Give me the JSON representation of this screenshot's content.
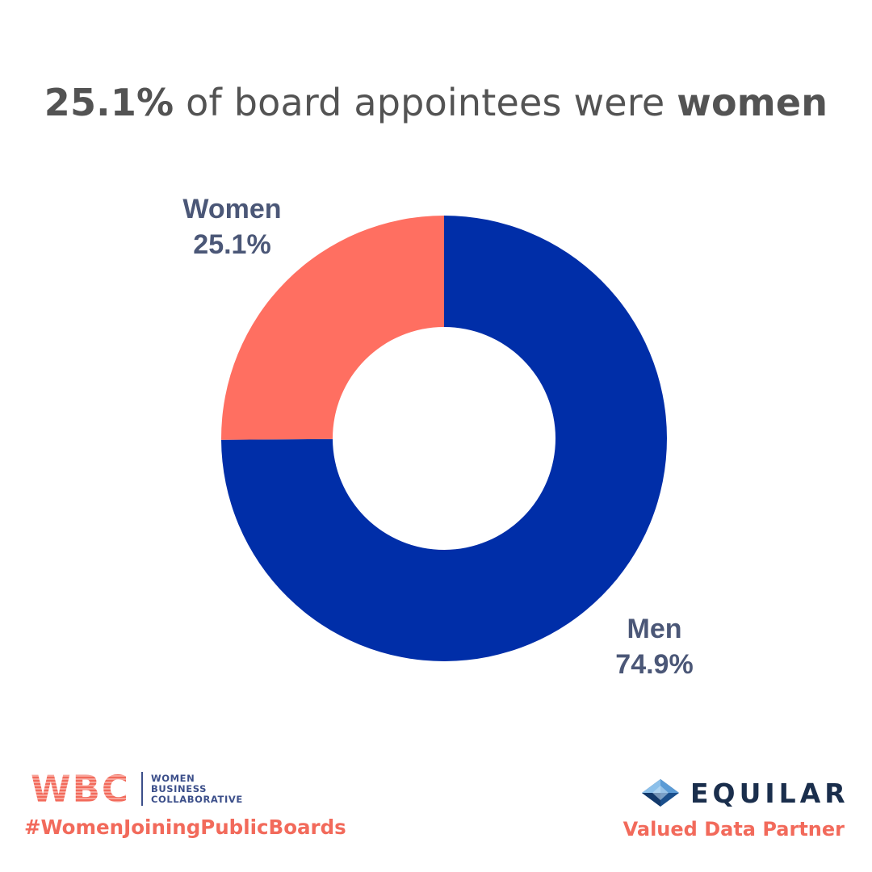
{
  "header": {
    "title_pct": "25.1%",
    "title_mid": " of board appointees were ",
    "title_end": "women"
  },
  "chart_data": {
    "type": "pie",
    "donut": true,
    "categories": [
      "Women",
      "Men"
    ],
    "values": [
      25.1,
      74.9
    ],
    "value_labels": [
      "25.1%",
      "74.9%"
    ],
    "colors": [
      "#ff6f61",
      "#002ea8"
    ],
    "title": "25.1% of board appointees were women"
  },
  "footer": {
    "wbc": {
      "mark": "WBC",
      "line1": "WOMEN",
      "line2": "BUSINESS",
      "line3": "COLLABORATIVE"
    },
    "hashtag": "#WomenJoiningPublicBoards",
    "equilar": {
      "wordmark": "EQUILAR",
      "icon": "diamond-logo-icon"
    },
    "partner_label": "Valued Data Partner"
  },
  "colors": {
    "accent": "#f26a5b",
    "label_text": "#4b5777",
    "title_text": "#535353",
    "navy": "#1a2e4c"
  }
}
